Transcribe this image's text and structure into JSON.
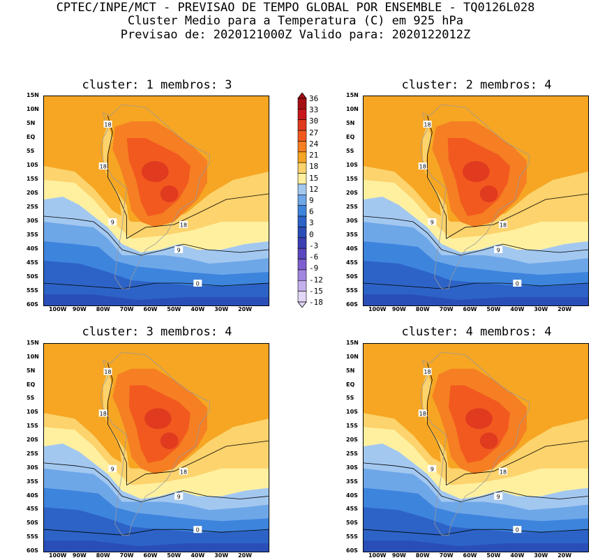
{
  "header": {
    "line1": "CPTEC/INPE/MCT - PREVISAO DE TEMPO GLOBAL POR ENSEMBLE - TQ0126L028",
    "line2": "Cluster Medio para a Temperatura (C) em 925 hPa",
    "line3": "Previsao de: 2020121000Z   Valido para: 2020122012Z"
  },
  "panels": [
    {
      "title": "cluster: 1  membros: 3"
    },
    {
      "title": "cluster: 2  membros: 4"
    },
    {
      "title": "cluster: 3  membros: 4"
    },
    {
      "title": "cluster: 4  membros: 4"
    }
  ],
  "lat_ticks": [
    "15N",
    "10N",
    "5N",
    "EQ",
    "5S",
    "10S",
    "15S",
    "20S",
    "25S",
    "30S",
    "35S",
    "40S",
    "45S",
    "50S",
    "55S",
    "60S"
  ],
  "lon_ticks": [
    "100W",
    "90W",
    "80W",
    "70W",
    "60W",
    "50W",
    "40W",
    "30W",
    "20W"
  ],
  "contour_labels": [
    "18",
    "9",
    "0"
  ],
  "colorbar": {
    "labels": [
      "36",
      "33",
      "30",
      "27",
      "24",
      "21",
      "18",
      "15",
      "12",
      "9",
      "6",
      "3",
      "0",
      "-3",
      "-6",
      "-9",
      "-12",
      "-15",
      "-18"
    ],
    "colors": [
      "#a50f15",
      "#c8181b",
      "#e03a1f",
      "#f2591f",
      "#f57f22",
      "#f6a623",
      "#fcd36c",
      "#fff0a0",
      "#a3c8f0",
      "#6ea7e8",
      "#3d84dd",
      "#2d63c6",
      "#2a4eb8",
      "#3b3fb3",
      "#5a46bd",
      "#7d5fcf",
      "#a286df",
      "#c4b0ec",
      "#e2d7f6"
    ]
  }
}
